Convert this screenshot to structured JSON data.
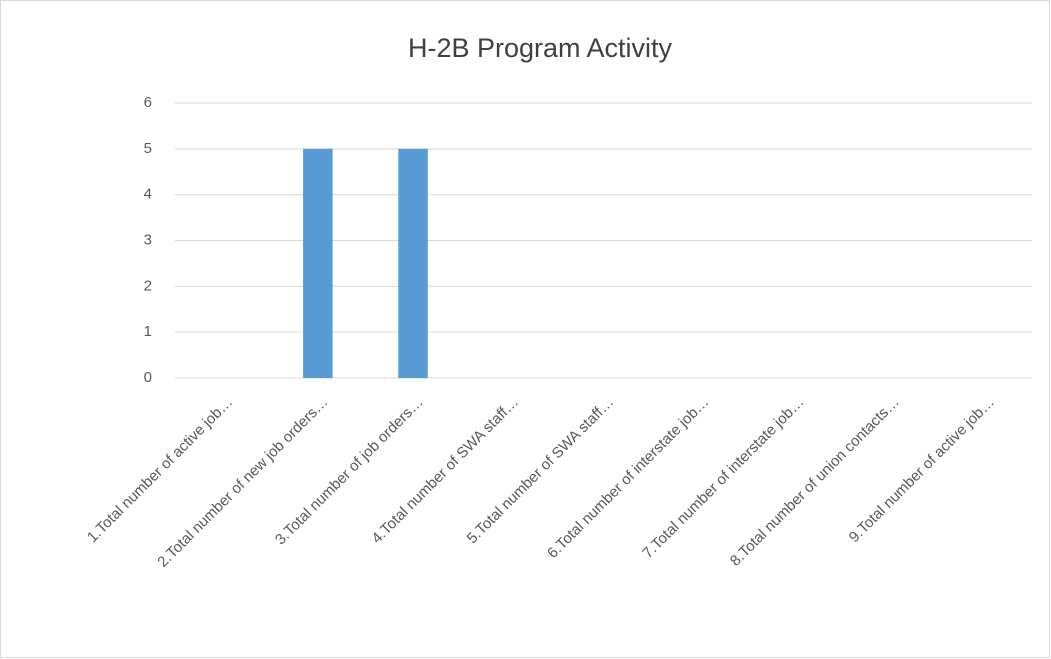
{
  "chart_data": {
    "type": "bar",
    "title": "H-2B Program Activity",
    "categories": [
      "1.Total number of active job…",
      "2.Total number of new job orders…",
      "3.Total number of job orders…",
      "4.Total number of SWA staff…",
      "5.Total number of SWA staff…",
      "6.Total number of interstate job…",
      "7.Total number of interstate job…",
      "8.Total number of union contacts…",
      "9.Total number of active job…"
    ],
    "values": [
      0,
      5,
      5,
      0,
      0,
      0,
      0,
      0,
      0
    ],
    "color": "#5b9bd5",
    "ylim": [
      0,
      6
    ],
    "yticks": [
      0,
      1,
      2,
      3,
      4,
      5,
      6
    ],
    "grid": true
  }
}
